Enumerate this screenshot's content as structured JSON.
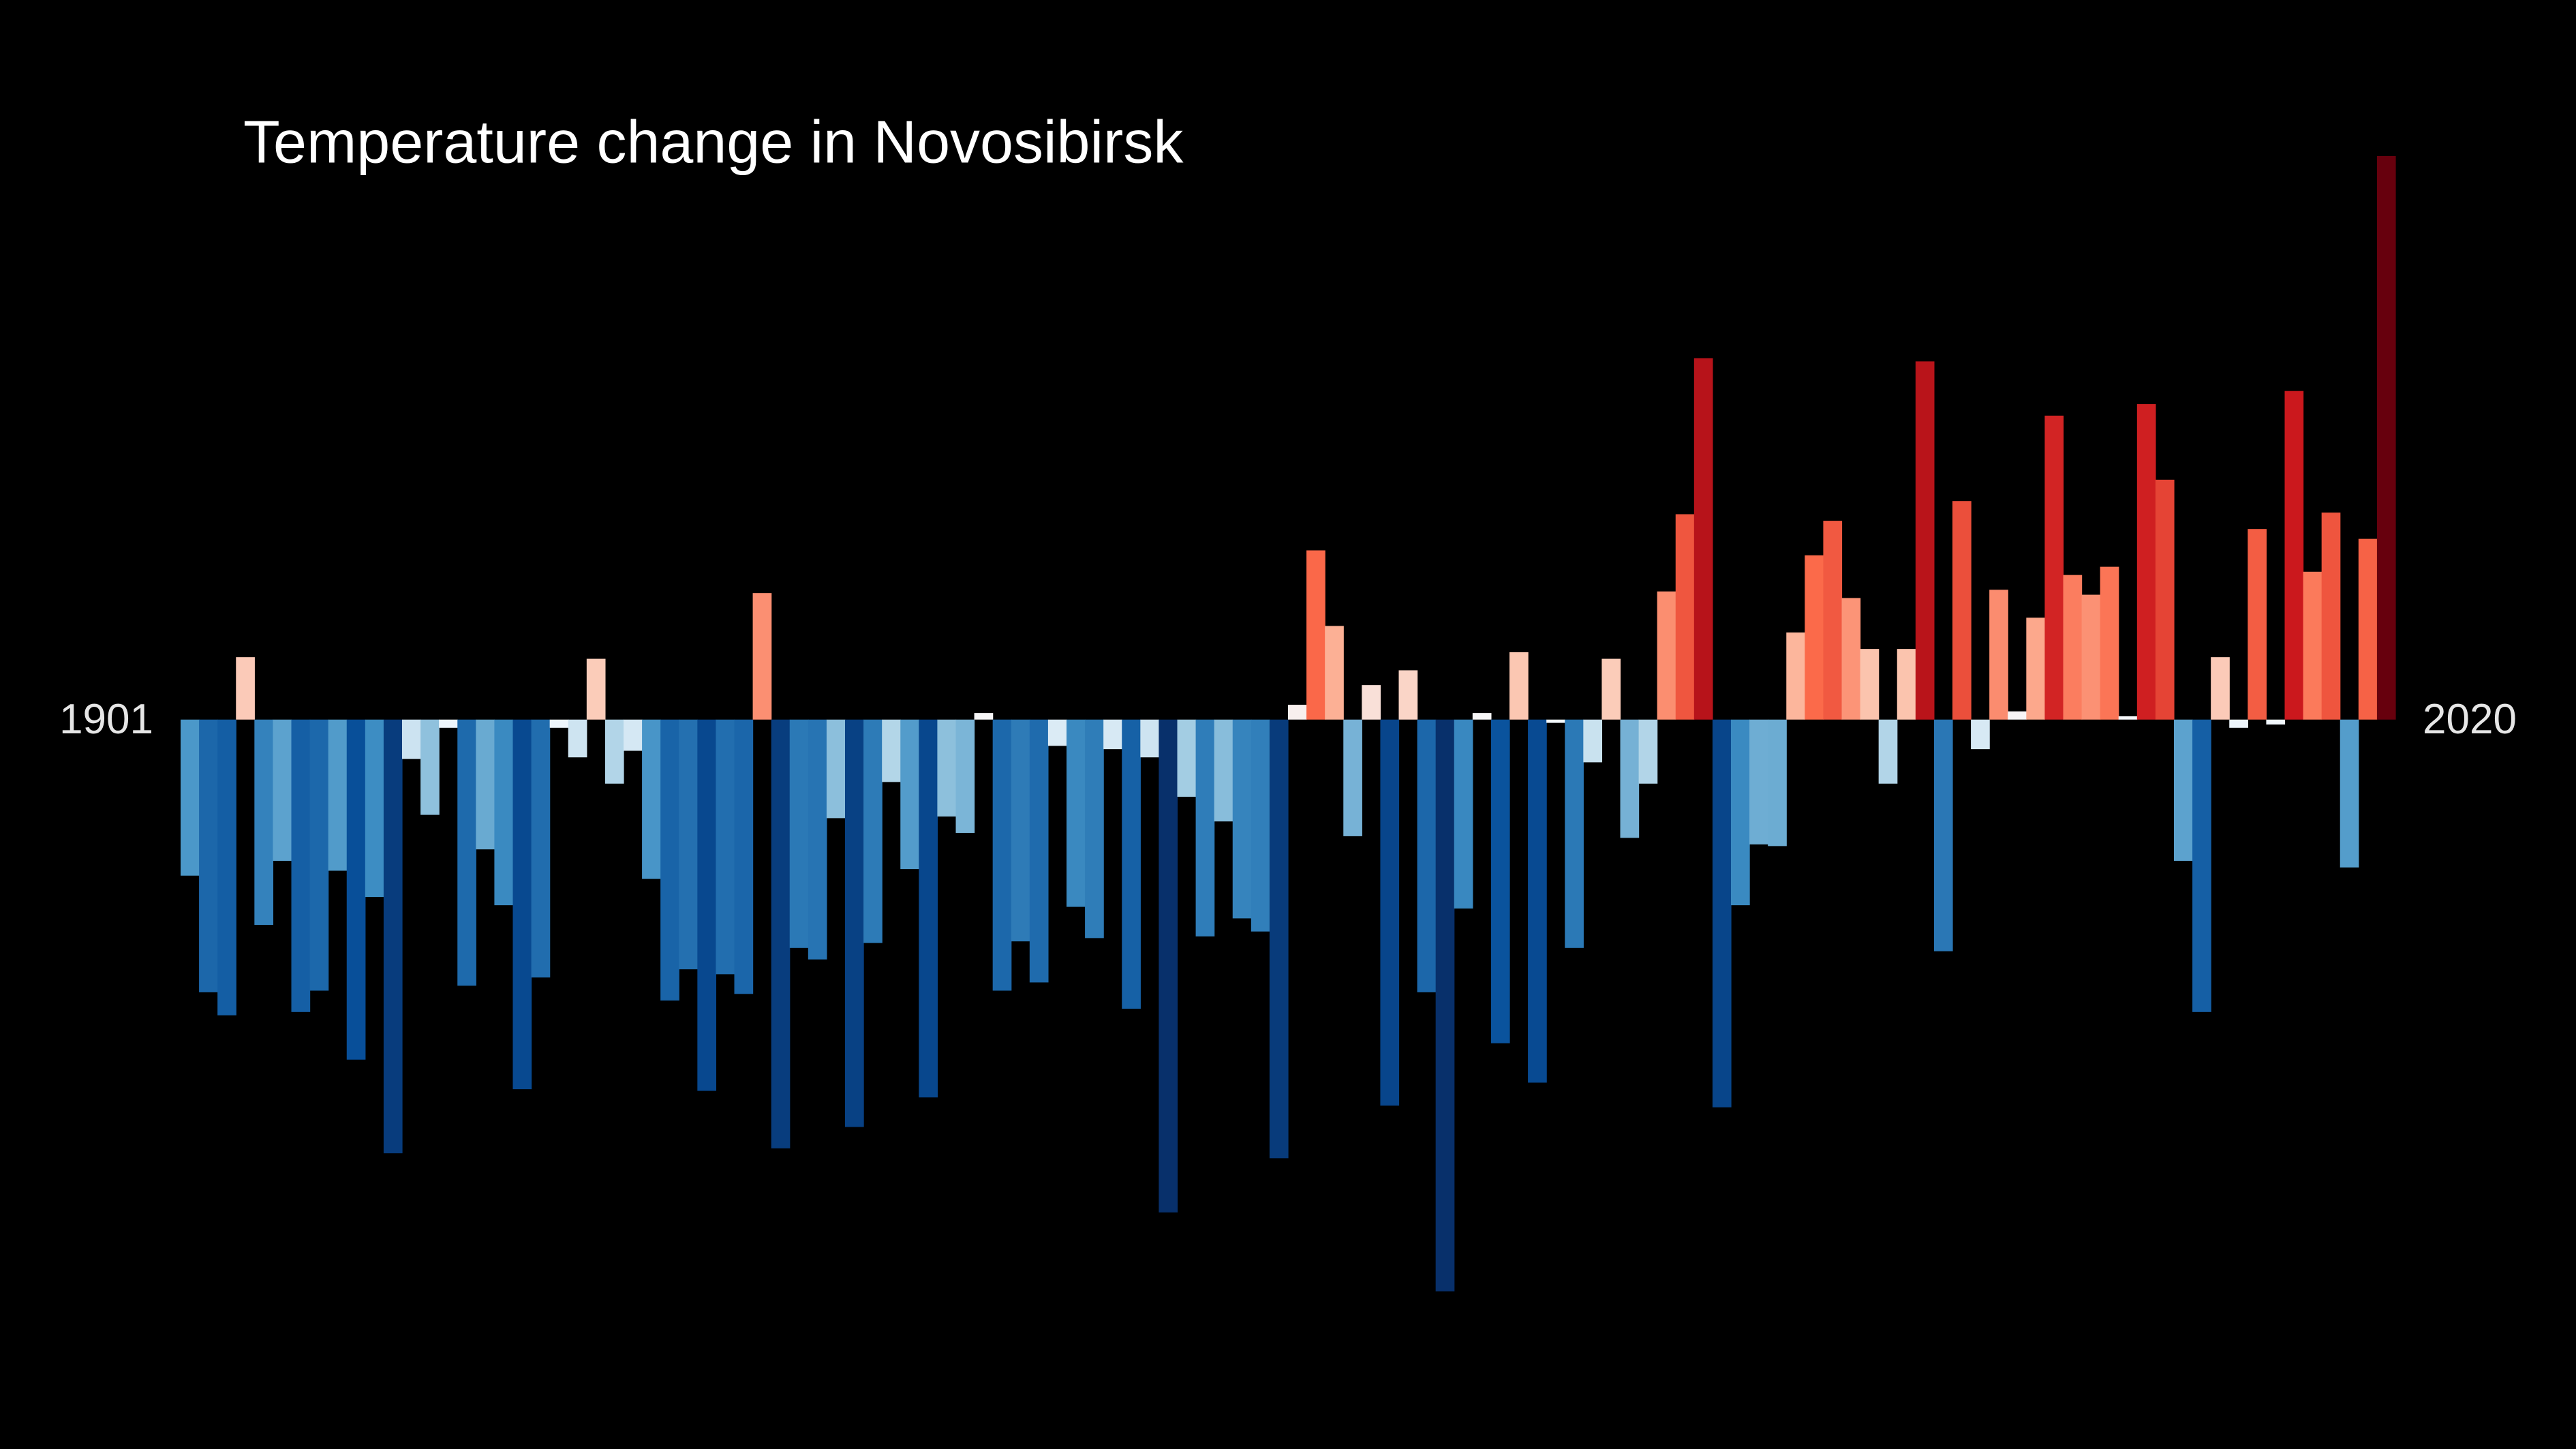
{
  "chart_data": {
    "type": "bar",
    "title": "Temperature change in Novosibirsk",
    "categories": [
      "1901",
      null,
      null,
      null,
      null,
      null,
      null,
      null,
      null,
      null,
      null,
      null,
      null,
      null,
      null,
      null,
      null,
      null,
      null,
      null,
      null,
      null,
      null,
      null,
      null,
      null,
      null,
      null,
      null,
      null,
      null,
      null,
      null,
      null,
      null,
      null,
      null,
      null,
      null,
      null,
      null,
      null,
      null,
      null,
      null,
      null,
      null,
      null,
      null,
      null,
      null,
      null,
      null,
      null,
      null,
      null,
      null,
      null,
      null,
      null,
      null,
      null,
      null,
      null,
      null,
      null,
      null,
      null,
      null,
      null,
      null,
      null,
      null,
      null,
      null,
      null,
      null,
      null,
      null,
      null,
      null,
      null,
      null,
      null,
      null,
      null,
      null,
      null,
      null,
      null,
      null,
      null,
      null,
      null,
      null,
      null,
      null,
      null,
      null,
      null,
      null,
      null,
      null,
      null,
      null,
      null,
      null,
      null,
      null,
      null,
      null,
      null,
      null,
      null,
      null,
      null,
      null,
      null,
      null,
      "2020"
    ],
    "values": [
      -0.95,
      -1.66,
      -1.8,
      0.38,
      -1.25,
      -0.86,
      -1.78,
      -1.65,
      -0.92,
      -2.07,
      -1.08,
      -2.64,
      -0.24,
      -0.58,
      -0.05,
      -1.62,
      -0.79,
      -1.13,
      -2.25,
      -1.57,
      -0.05,
      -0.23,
      0.37,
      -0.39,
      -0.19,
      -0.97,
      -1.71,
      -1.52,
      -2.26,
      -1.55,
      -1.67,
      0.77,
      -2.61,
      -1.39,
      -1.46,
      -0.6,
      -2.48,
      -1.36,
      -0.38,
      -0.91,
      -2.3,
      -0.59,
      -0.69,
      0.04,
      -1.65,
      -1.35,
      -1.6,
      -0.16,
      -1.14,
      -1.33,
      -0.18,
      -1.76,
      -0.23,
      -3.0,
      -0.47,
      -1.32,
      -0.62,
      -1.21,
      -1.29,
      -2.67,
      0.09,
      1.03,
      0.57,
      -0.71,
      0.21,
      -2.35,
      0.3,
      -1.66,
      -3.48,
      -1.15,
      0.04,
      -1.97,
      0.41,
      -2.21,
      -0.02,
      -1.39,
      -0.26,
      0.37,
      -0.72,
      -0.39,
      0.78,
      1.25,
      2.2,
      -2.36,
      -1.13,
      -0.76,
      -0.77,
      0.53,
      1.0,
      1.21,
      0.74,
      0.43,
      -0.39,
      0.43,
      2.18,
      -1.41,
      1.33,
      -0.18,
      0.79,
      0.05,
      0.62,
      1.85,
      0.88,
      0.76,
      0.93,
      0.02,
      1.92,
      1.46,
      -0.86,
      -1.78,
      0.38,
      -0.05,
      1.16,
      -0.03,
      2.0,
      0.9,
      1.26,
      -0.9,
      1.1,
      3.43
    ],
    "ylim": [
      -4.44,
      4.38
    ],
    "colorscale": [
      [
        -3,
        "#08306b"
      ],
      [
        -2,
        "#08519c"
      ],
      [
        -1,
        "#4292c6"
      ],
      [
        -0.5,
        "#9ecae1"
      ],
      [
        0,
        "#f7fbff"
      ],
      [
        0.5,
        "#fcbba1"
      ],
      [
        1,
        "#fb6a4a"
      ],
      [
        2,
        "#cb181d"
      ],
      [
        3,
        "#67000d"
      ]
    ]
  }
}
